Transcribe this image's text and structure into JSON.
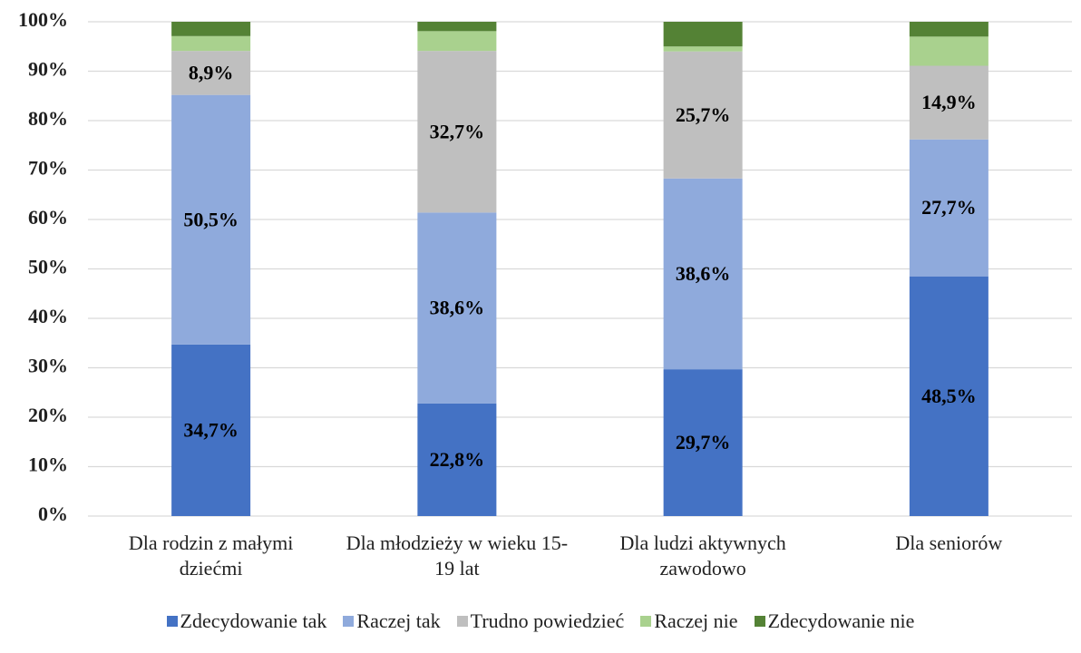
{
  "chart_data": {
    "type": "bar",
    "stacked": true,
    "categories": [
      "Dla rodzin z małymi dziećmi",
      "Dla młodzieży w wieku 15-19 lat",
      "Dla ludzi aktywnych zawodowo",
      "Dla seniorów"
    ],
    "series": [
      {
        "name": "Zdecydowanie tak",
        "color": "#4472c4",
        "values": [
          34.7,
          22.8,
          29.7,
          48.5
        ],
        "value_labels": [
          "34,7%",
          "22,8%",
          "29,7%",
          "48,5%"
        ]
      },
      {
        "name": "Raczej tak",
        "color": "#8faadc",
        "values": [
          50.5,
          38.6,
          38.6,
          27.7
        ],
        "value_labels": [
          "50,5%",
          "38,6%",
          "38,6%",
          "27,7%"
        ]
      },
      {
        "name": "Trudno powiedzieć",
        "color": "#bfbfbf",
        "values": [
          8.9,
          32.7,
          25.7,
          14.9
        ],
        "value_labels": [
          "8,9%",
          "32,7%",
          "25,7%",
          "14,9%"
        ]
      },
      {
        "name": "Raczej nie",
        "color": "#a9d18e",
        "values": [
          3.0,
          4.0,
          1.0,
          5.9
        ]
      },
      {
        "name": "Zdecydowanie nie",
        "color": "#548235",
        "values": [
          2.9,
          1.9,
          5.0,
          3.0
        ]
      }
    ],
    "ylim": [
      0,
      100
    ],
    "yticks": [
      {
        "value": 0,
        "label": "0%"
      },
      {
        "value": 10,
        "label": "10%"
      },
      {
        "value": 20,
        "label": "20%"
      },
      {
        "value": 30,
        "label": "30%"
      },
      {
        "value": 40,
        "label": "40%"
      },
      {
        "value": 50,
        "label": "50%"
      },
      {
        "value": 60,
        "label": "60%"
      },
      {
        "value": 70,
        "label": "70%"
      },
      {
        "value": 80,
        "label": "80%"
      },
      {
        "value": 90,
        "label": "90%"
      },
      {
        "value": 100,
        "label": "100%"
      }
    ],
    "grid": true,
    "legend": "bottom"
  }
}
